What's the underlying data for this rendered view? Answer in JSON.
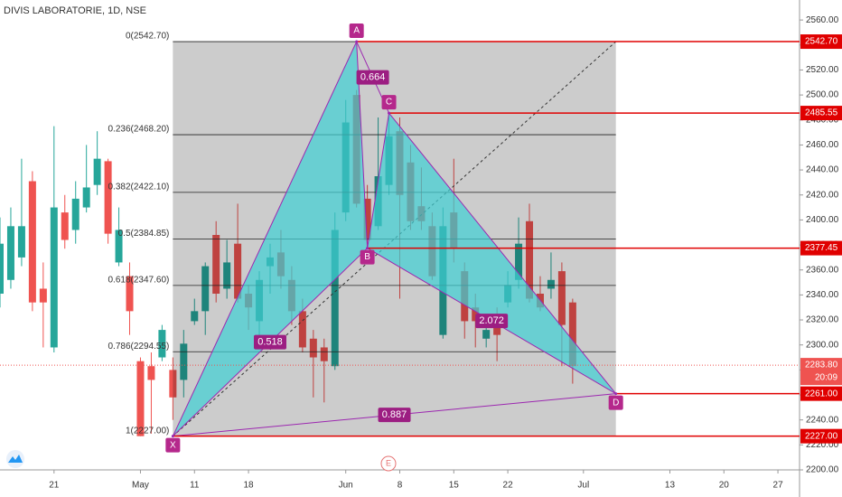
{
  "chart_data": {
    "type": "candlestick",
    "title": "DIVIS LABORATORIE, 1D, NSE",
    "xlim": [
      0,
      74
    ],
    "ylim": [
      2200,
      2576
    ],
    "xticks": [
      {
        "value": 5,
        "label": "21"
      },
      {
        "value": 13,
        "label": "May"
      },
      {
        "value": 18,
        "label": "11"
      },
      {
        "value": 23,
        "label": "18"
      },
      {
        "value": 32,
        "label": "Jun"
      },
      {
        "value": 37,
        "label": "8"
      },
      {
        "value": 42,
        "label": "15"
      },
      {
        "value": 47,
        "label": "22"
      },
      {
        "value": 54,
        "label": "Jul"
      },
      {
        "value": 62,
        "label": "13"
      },
      {
        "value": 67,
        "label": "20"
      },
      {
        "value": 72,
        "label": "27"
      }
    ],
    "yticks": [
      {
        "value": 2200,
        "label": "2200.00"
      },
      {
        "value": 2220,
        "label": "2220.00"
      },
      {
        "value": 2240,
        "label": "2240.00"
      },
      {
        "value": 2260,
        "label": "2260.00"
      },
      {
        "value": 2280,
        "label": "2280.00"
      },
      {
        "value": 2300,
        "label": "2300.00"
      },
      {
        "value": 2320,
        "label": "2320.00"
      },
      {
        "value": 2340,
        "label": "2340.00"
      },
      {
        "value": 2360,
        "label": "2360.00"
      },
      {
        "value": 2380,
        "label": "2380.00"
      },
      {
        "value": 2400,
        "label": "2400.00"
      },
      {
        "value": 2420,
        "label": "2420.00"
      },
      {
        "value": 2440,
        "label": "2440.00"
      },
      {
        "value": 2460,
        "label": "2460.00"
      },
      {
        "value": 2480,
        "label": "2480.00"
      },
      {
        "value": 2500,
        "label": "2500.00"
      },
      {
        "value": 2520,
        "label": "2520.00"
      },
      {
        "value": 2540,
        "label": "2540.00"
      },
      {
        "value": 2560,
        "label": "2560.00"
      }
    ],
    "colors": {
      "up": "#26a69a",
      "down": "#ef5350"
    },
    "open": [
      2341,
      2352,
      2370,
      2431,
      2345,
      2298,
      2406,
      2392,
      2410,
      2428,
      2447,
      2366,
      2355,
      2287,
      2283,
      2290,
      2280,
      2272,
      2319,
      2327,
      2388,
      2345,
      2381,
      2341,
      2319,
      2363,
      2374,
      2352,
      2327,
      2305,
      2298,
      2283,
      2406,
      2500,
      2417,
      2395,
      2428,
      2471,
      2446,
      2411,
      2395,
      2308,
      2406,
      2359,
      2330,
      2305,
      2323,
      2334,
      2352,
      2399,
      2341,
      2345,
      2359,
      2334
    ],
    "high": [
      2402,
      2410,
      2449,
      2439,
      2366,
      2475,
      2420,
      2431,
      2460,
      2471,
      2449,
      2410,
      2366,
      2290,
      2294,
      2316,
      2290,
      2312,
      2337,
      2366,
      2399,
      2384,
      2413,
      2348,
      2359,
      2381,
      2392,
      2363,
      2337,
      2312,
      2305,
      2406,
      2496,
      2504,
      2428,
      2482,
      2486,
      2482,
      2460,
      2442,
      2406,
      2410,
      2449,
      2366,
      2341,
      2323,
      2330,
      2359,
      2402,
      2413,
      2355,
      2374,
      2366,
      2337
    ],
    "low": [
      2330,
      2345,
      2363,
      2327,
      2298,
      2294,
      2377,
      2381,
      2406,
      2420,
      2381,
      2363,
      2308,
      2227,
      2229,
      2287,
      2240,
      2258,
      2316,
      2308,
      2334,
      2337,
      2334,
      2312,
      2308,
      2341,
      2345,
      2316,
      2294,
      2258,
      2254,
      2280,
      2399,
      2410,
      2381,
      2392,
      2420,
      2337,
      2392,
      2392,
      2352,
      2305,
      2366,
      2305,
      2298,
      2298,
      2287,
      2330,
      2345,
      2334,
      2327,
      2337,
      2283,
      2269
    ],
    "close": [
      2381,
      2395,
      2395,
      2334,
      2334,
      2410,
      2384,
      2417,
      2426,
      2449,
      2389,
      2392,
      2327,
      2227,
      2272,
      2312,
      2258,
      2301,
      2327,
      2363,
      2341,
      2366,
      2337,
      2330,
      2352,
      2370,
      2355,
      2327,
      2298,
      2290,
      2287,
      2392,
      2478,
      2413,
      2384,
      2435,
      2467,
      2420,
      2399,
      2399,
      2355,
      2395,
      2377,
      2319,
      2319,
      2312,
      2308,
      2348,
      2381,
      2337,
      2330,
      2352,
      2316,
      2283
    ],
    "fibonacci": [
      {
        "value": 2542.7,
        "label": "0(2542.70)"
      },
      {
        "value": 2468.2,
        "label": "0.236(2468.20)"
      },
      {
        "value": 2422.1,
        "label": "0.382(2422.10)"
      },
      {
        "value": 2384.85,
        "label": "0.5(2384.85)"
      },
      {
        "value": 2347.6,
        "label": "0.618(2347.60)"
      },
      {
        "value": 2294.55,
        "label": "0.786(2294.55)"
      },
      {
        "value": 2227,
        "label": "1(2227.00)"
      }
    ],
    "pattern": {
      "color": "#9c27b0",
      "fill": "#3fd0d4",
      "points": [
        {
          "label": "X",
          "x": 16,
          "y": 2227
        },
        {
          "label": "A",
          "x": 33,
          "y": 2542.7
        },
        {
          "label": "B",
          "x": 34,
          "y": 2377.45
        },
        {
          "label": "C",
          "x": 36,
          "y": 2485.55
        },
        {
          "label": "D",
          "x": 57,
          "y": 2261
        }
      ],
      "ratios": [
        {
          "from": "X",
          "to": "B",
          "value": 0.518
        },
        {
          "from": "A",
          "to": "C",
          "value": 0.664
        },
        {
          "from": "B",
          "to": "D",
          "value": 2.072
        },
        {
          "from": "X",
          "to": "D",
          "value": 0.887
        }
      ]
    },
    "price_lines": [
      {
        "value": 2542.7,
        "label": "2542.70"
      },
      {
        "value": 2485.55,
        "label": "2485.55"
      },
      {
        "value": 2377.45,
        "label": "2377.45"
      },
      {
        "value": 2261,
        "label": "2261.00"
      },
      {
        "value": 2227,
        "label": "2227.00"
      }
    ],
    "last_price": {
      "value": 2283.8,
      "label": "2283.80",
      "countdown": "20:09"
    },
    "event_marker": "E"
  }
}
